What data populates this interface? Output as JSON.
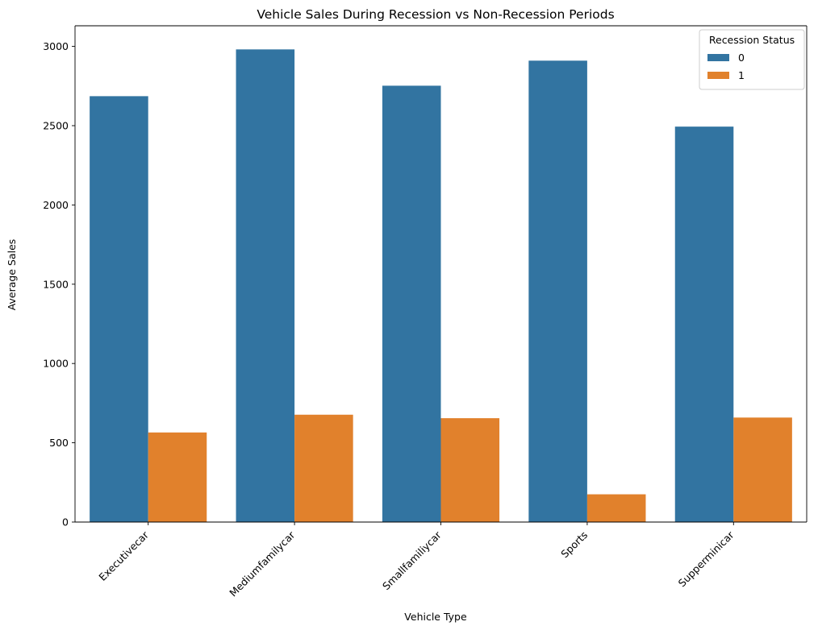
{
  "chart_data": {
    "type": "bar",
    "title": "Vehicle Sales During Recession vs Non-Recession Periods",
    "xlabel": "Vehicle Type",
    "ylabel": "Average Sales",
    "categories": [
      "Executivecar",
      "Mediumfamilycar",
      "Smallfamiliycar",
      "Sports",
      "Supperminicar"
    ],
    "series": [
      {
        "name": "0",
        "color": "#3274a1",
        "values": [
          2686,
          2981,
          2752,
          2910,
          2494
        ]
      },
      {
        "name": "1",
        "color": "#e1812c",
        "values": [
          565,
          677,
          655,
          175,
          659
        ]
      }
    ],
    "ylim": [
      0,
      3130
    ],
    "yticks": [
      0,
      500,
      1000,
      1500,
      2000,
      2500,
      3000
    ],
    "legend": {
      "title": "Recession Status",
      "position": "upper-right"
    },
    "grid": false
  }
}
